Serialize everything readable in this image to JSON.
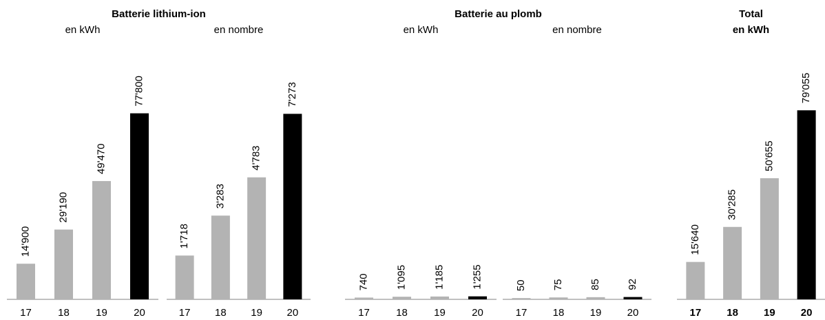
{
  "chart_data": [
    {
      "type": "bar",
      "title": "Batterie lithium-ion",
      "subtitle": "en kWh",
      "categories": [
        "17",
        "18",
        "19",
        "20"
      ],
      "values": [
        14900,
        29190,
        49470,
        77800
      ],
      "value_labels": [
        "14'900",
        "29'190",
        "49'470",
        "77'800"
      ],
      "colors": [
        "#b3b3b3",
        "#b3b3b3",
        "#b3b3b3",
        "#000000"
      ],
      "ylim": [
        0,
        80000
      ]
    },
    {
      "type": "bar",
      "subtitle": "en nombre",
      "categories": [
        "17",
        "18",
        "19",
        "20"
      ],
      "values": [
        1718,
        3283,
        4783,
        7273
      ],
      "value_labels": [
        "1'718",
        "3'283",
        "4'783",
        "7'273"
      ],
      "colors": [
        "#b3b3b3",
        "#b3b3b3",
        "#b3b3b3",
        "#000000"
      ],
      "ylim": [
        0,
        7500
      ]
    },
    {
      "type": "bar",
      "title": "Batterie au plomb",
      "subtitle": "en kWh",
      "categories": [
        "17",
        "18",
        "19",
        "20"
      ],
      "values": [
        740,
        1095,
        1185,
        1255
      ],
      "value_labels": [
        "740",
        "1'095",
        "1'185",
        "1'255"
      ],
      "colors": [
        "#b3b3b3",
        "#b3b3b3",
        "#b3b3b3",
        "#000000"
      ],
      "ylim": [
        0,
        80000
      ]
    },
    {
      "type": "bar",
      "subtitle": "en nombre",
      "categories": [
        "17",
        "18",
        "19",
        "20"
      ],
      "values": [
        50,
        75,
        85,
        92
      ],
      "colors": [
        "#b3b3b3",
        "#b3b3b3",
        "#b3b3b3",
        "#000000"
      ],
      "ylim": [
        0,
        7500
      ]
    },
    {
      "type": "bar",
      "title": "Total",
      "subtitle": "en kWh",
      "bold": true,
      "categories": [
        "17",
        "18",
        "19",
        "20"
      ],
      "values": [
        15640,
        30285,
        50655,
        79055
      ],
      "value_labels": [
        "15'640",
        "30'285",
        "50'655",
        "79'055"
      ],
      "colors": [
        "#b3b3b3",
        "#b3b3b3",
        "#b3b3b3",
        "#000000"
      ],
      "ylim": [
        0,
        80000
      ]
    }
  ]
}
